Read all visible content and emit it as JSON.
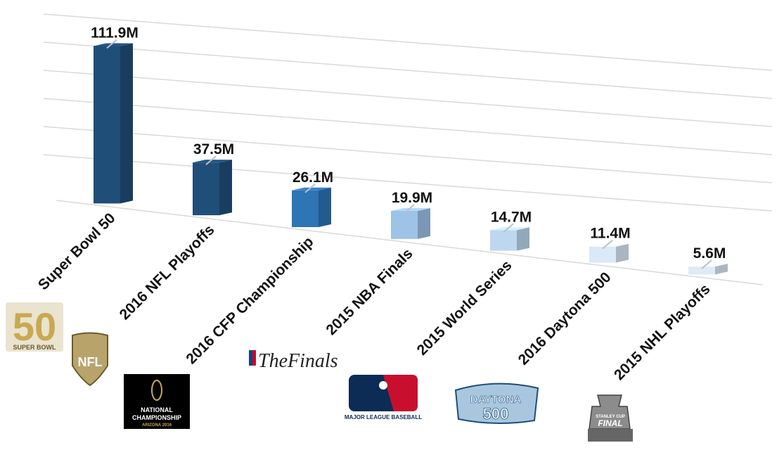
{
  "chart_data": {
    "type": "bar",
    "title": "",
    "xlabel": "",
    "ylabel": "",
    "ylim": [
      0,
      120
    ],
    "grid": true,
    "legend": "none",
    "categories": [
      "Super Bowl 50",
      "2016 NFL Playoffs",
      "2016 CFP Championship",
      "2015 NBA Finals",
      "2015 World Series",
      "2016 Daytona 500",
      "2015 NHL Playoffs"
    ],
    "values": [
      111.9,
      37.5,
      26.1,
      19.9,
      14.7,
      11.4,
      5.6
    ],
    "value_labels": [
      "111.9M",
      "37.5M",
      "26.1M",
      "19.9M",
      "14.7M",
      "11.4M",
      "5.6M"
    ],
    "colors": [
      "#1f4e79",
      "#1f4e79",
      "#2e75b6",
      "#9dc3e6",
      "#bdd7ee",
      "#dae8f7",
      "#deebf7"
    ],
    "logos": [
      "super-bowl-50-logo",
      "nfl-logo",
      "cfp-national-championship-logo",
      "nba-the-finals-logo",
      "mlb-logo",
      "daytona-500-logo",
      "stanley-cup-final-logo"
    ]
  },
  "logo_text": {
    "sb_number": "50",
    "sb_caption": "SUPER BOWL",
    "nfl": "NFL",
    "cfp_line1": "NATIONAL",
    "cfp_line2": "CHAMPIONSHIP",
    "cfp_line3": "ARIZONA 2016",
    "nba_finals": "TheFinals",
    "mlb": "MAJOR LEAGUE BASEBALL",
    "daytona_word": "DAYTONA",
    "daytona_num": "500",
    "stanley_line1": "STANLEY CUP",
    "stanley_line2": "FINAL"
  }
}
